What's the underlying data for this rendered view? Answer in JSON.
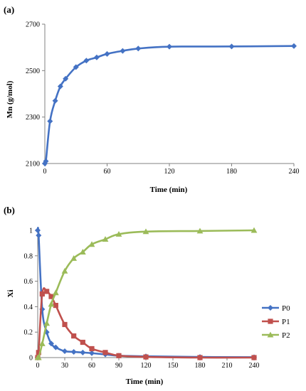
{
  "colors": {
    "mn": "#4472C4",
    "P0": "#4472C4",
    "P1": "#C0504D",
    "P2": "#9BBB59",
    "axis": "#808080"
  },
  "chart_data": [
    {
      "panel_label": "(a)",
      "type": "line",
      "title": "",
      "xlabel": "Time (min)",
      "ylabel": "Mn (g/mol)",
      "xlim": [
        0,
        240
      ],
      "ylim": [
        2100,
        2700
      ],
      "xticks": [
        0,
        60,
        120,
        180,
        240
      ],
      "yticks": [
        2100,
        2300,
        2500,
        2700
      ],
      "grid": false,
      "marker": "diamond",
      "series": [
        {
          "key": "mn",
          "x": [
            0,
            1,
            5,
            10,
            15,
            20,
            30,
            40,
            50,
            60,
            75,
            90,
            120,
            180,
            240
          ],
          "y": [
            2100,
            2110,
            2282,
            2370,
            2432,
            2465,
            2515,
            2543,
            2557,
            2572,
            2585,
            2595,
            2603,
            2604,
            2606
          ]
        }
      ]
    },
    {
      "panel_label": "(b)",
      "type": "line",
      "title": "",
      "xlabel": "Time (min)",
      "ylabel": "Xi",
      "xlim": [
        0,
        240
      ],
      "ylim": [
        0,
        1
      ],
      "xticks": [
        0,
        30,
        60,
        90,
        120,
        150,
        180,
        210,
        240
      ],
      "yticks": [
        0,
        0.2,
        0.4,
        0.6,
        0.8,
        1
      ],
      "ytick_labels": [
        "0",
        "0.2",
        "0.4",
        "0.6",
        "0.8",
        "1"
      ],
      "grid": false,
      "legend_position": "right",
      "series": [
        {
          "key": "P0",
          "name": "P0",
          "marker": "diamond",
          "x": [
            0,
            1,
            5,
            10,
            15,
            20,
            30,
            40,
            50,
            60,
            75,
            90,
            120,
            180,
            240
          ],
          "y": [
            1.0,
            0.96,
            0.38,
            0.2,
            0.11,
            0.08,
            0.05,
            0.045,
            0.04,
            0.035,
            0.025,
            0.015,
            0.01,
            0.005,
            0.003
          ]
        },
        {
          "key": "P1",
          "name": "P1",
          "marker": "square",
          "x": [
            0,
            1,
            5,
            10,
            15,
            20,
            30,
            40,
            50,
            60,
            75,
            90,
            120,
            180,
            240
          ],
          "y": [
            0.0,
            0.04,
            0.5,
            0.52,
            0.48,
            0.41,
            0.26,
            0.17,
            0.12,
            0.07,
            0.04,
            0.015,
            0.005,
            0.0,
            0.0
          ]
        },
        {
          "key": "P2",
          "name": "P2",
          "marker": "triangle",
          "x": [
            0,
            1,
            5,
            10,
            15,
            20,
            30,
            40,
            50,
            60,
            75,
            90,
            120,
            180,
            240
          ],
          "y": [
            0.0,
            0.0,
            0.11,
            0.27,
            0.42,
            0.51,
            0.68,
            0.78,
            0.83,
            0.89,
            0.93,
            0.97,
            0.99,
            0.995,
            1.0
          ]
        }
      ]
    }
  ]
}
